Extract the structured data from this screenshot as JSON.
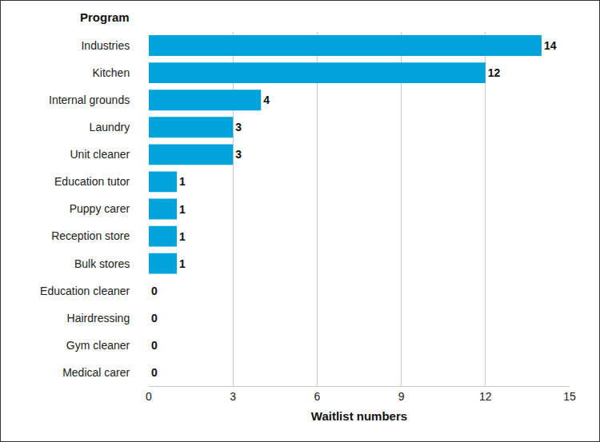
{
  "chart_data": {
    "type": "bar",
    "orientation": "horizontal",
    "y_label": "Program",
    "x_label": "Waitlist numbers",
    "categories": [
      "Industries",
      "Kitchen",
      "Internal grounds",
      "Laundry",
      "Unit cleaner",
      "Education tutor",
      "Puppy carer",
      "Reception store",
      "Bulk stores",
      "Education cleaner",
      "Hairdressing",
      "Gym cleaner",
      "Medical carer"
    ],
    "values": [
      14,
      12,
      4,
      3,
      3,
      1,
      1,
      1,
      1,
      0,
      0,
      0,
      0
    ],
    "color": "#00a3da",
    "xlim": [
      0,
      15
    ],
    "xticks": [
      0,
      3,
      6,
      9,
      12,
      15
    ],
    "grid": true,
    "data_labels": true
  }
}
